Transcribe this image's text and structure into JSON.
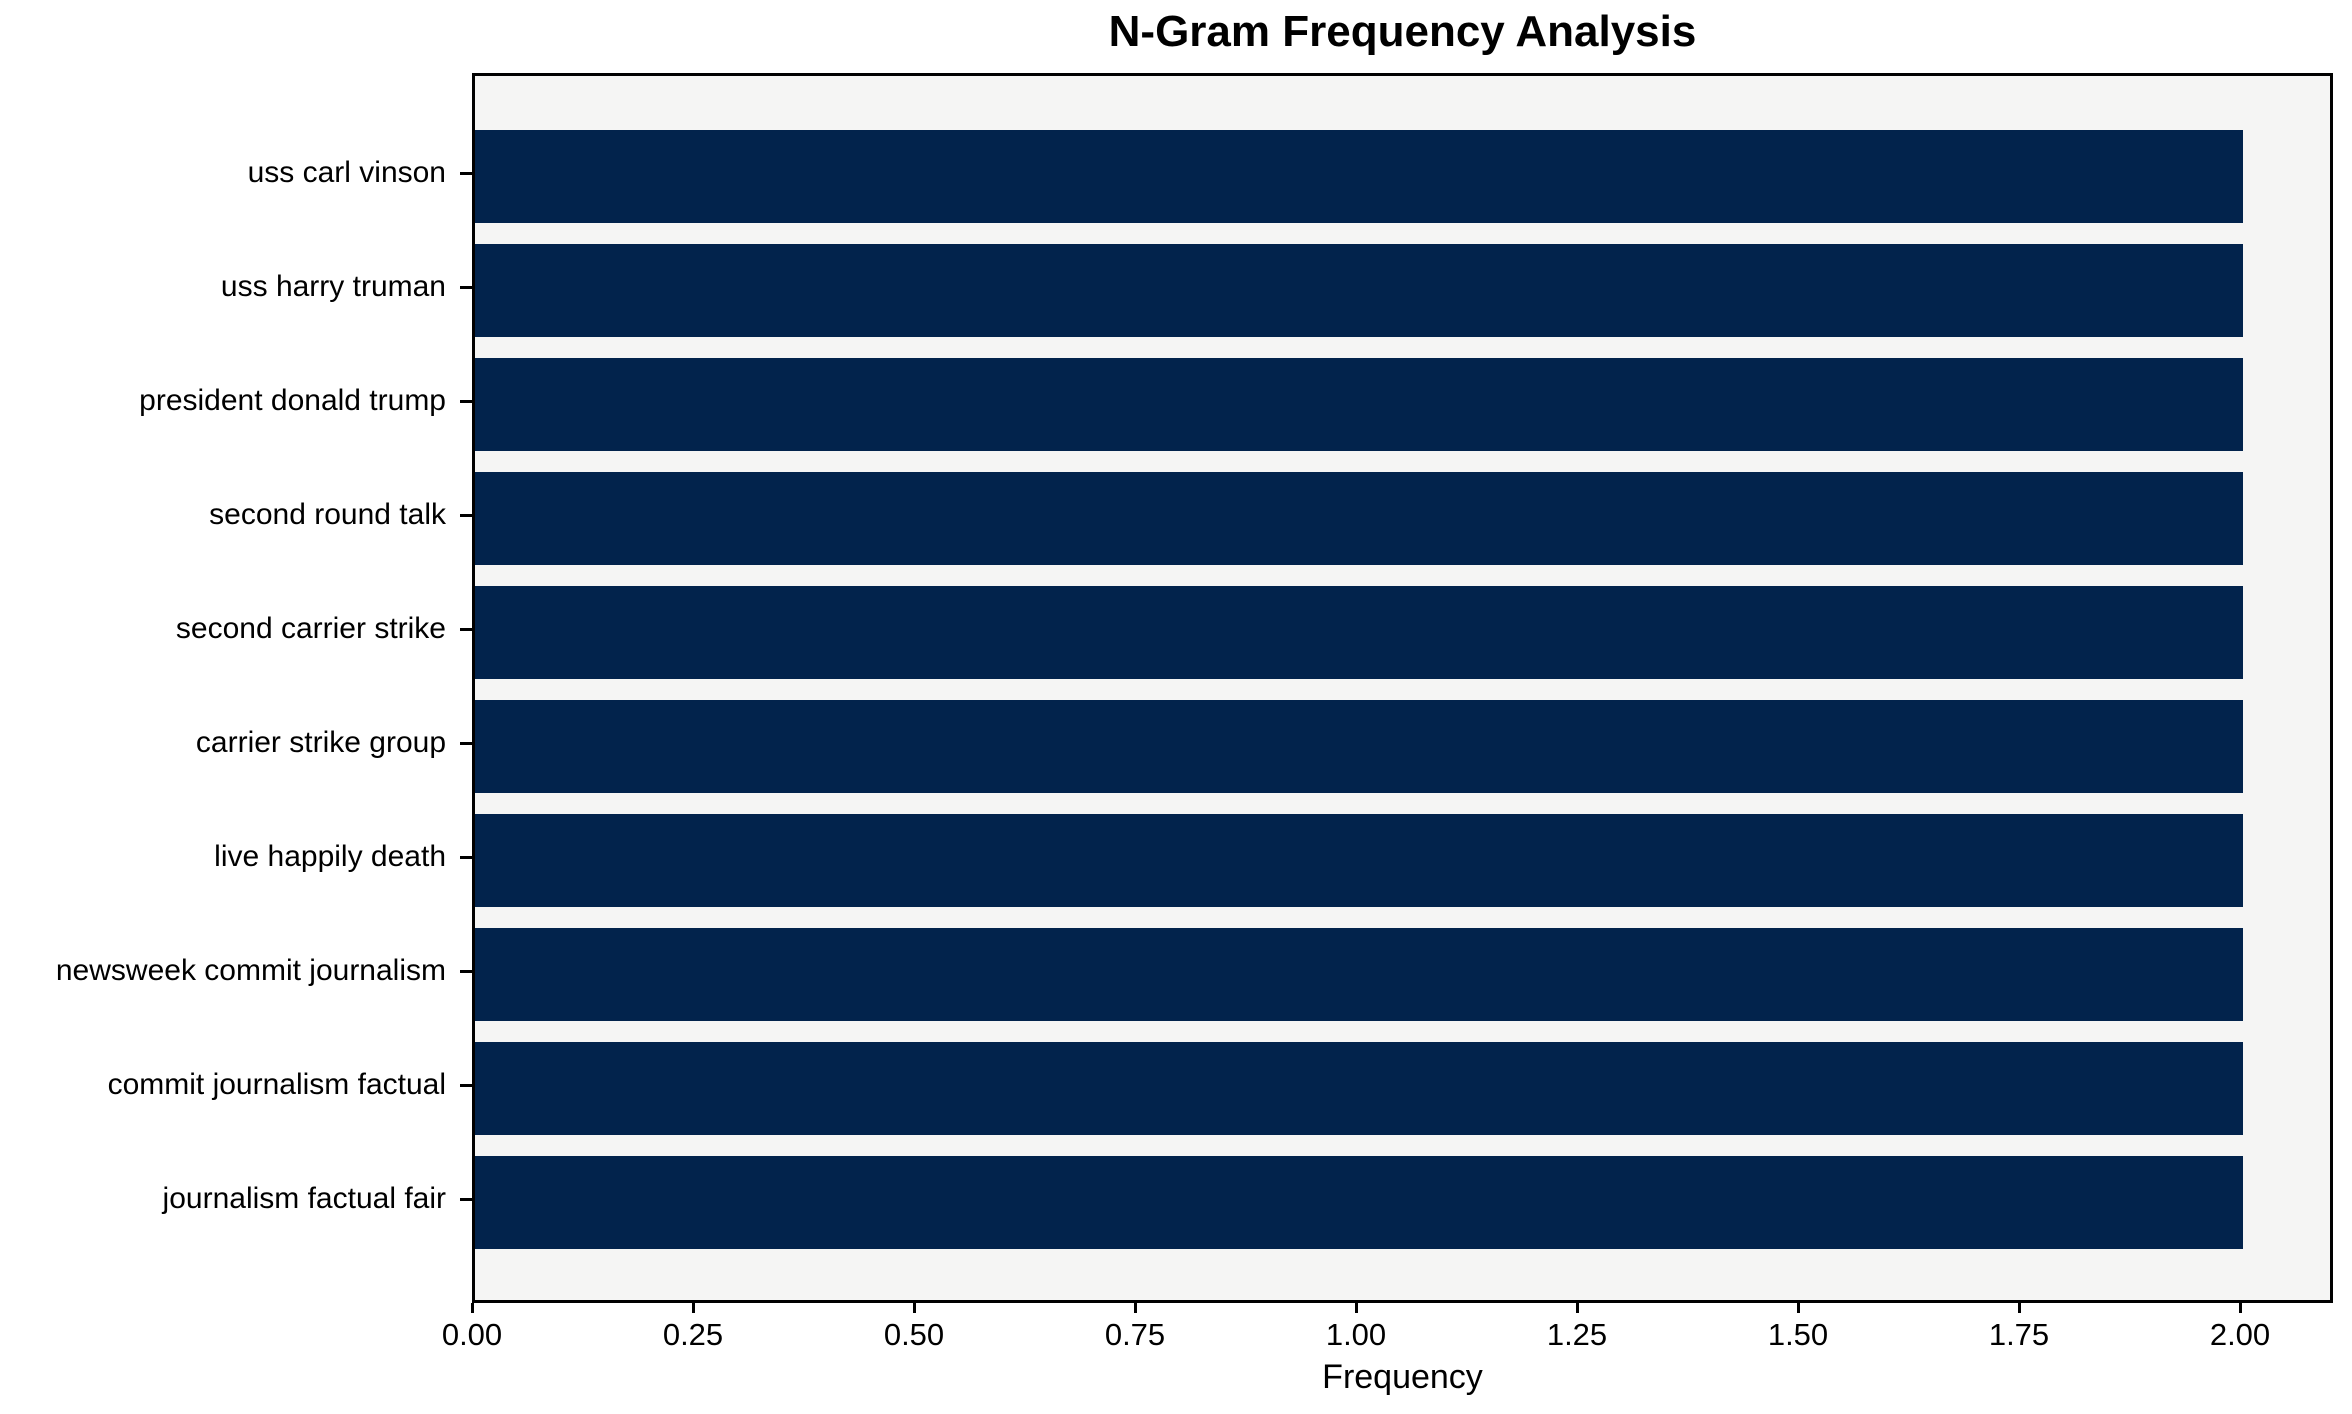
{
  "chart_data": {
    "type": "bar",
    "orientation": "horizontal",
    "title": "N-Gram Frequency Analysis",
    "xlabel": "Frequency",
    "categories": [
      "uss carl vinson",
      "uss harry truman",
      "president donald trump",
      "second round talk",
      "second carrier strike",
      "carrier strike group",
      "live happily death",
      "newsweek commit journalism",
      "commit journalism factual",
      "journalism factual fair"
    ],
    "values": [
      2,
      2,
      2,
      2,
      2,
      2,
      2,
      2,
      2,
      2
    ],
    "xticks": [
      "0.00",
      "0.25",
      "0.50",
      "0.75",
      "1.00",
      "1.25",
      "1.50",
      "1.75",
      "2.00"
    ],
    "xlim": [
      0,
      2.1
    ],
    "grid": false,
    "legend": false,
    "colors": {
      "bar": "#02234c",
      "plot_background": "#f5f5f4",
      "figure_background": "#ffffff",
      "axis": "#000000",
      "text": "#000000"
    }
  }
}
